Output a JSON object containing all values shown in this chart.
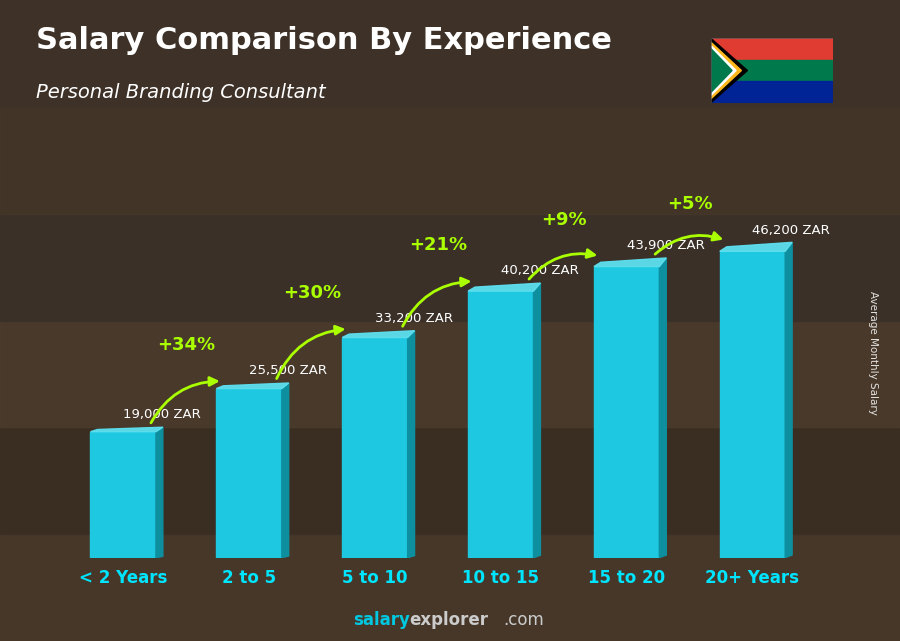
{
  "title": "Salary Comparison By Experience",
  "subtitle": "Personal Branding Consultant",
  "categories": [
    "< 2 Years",
    "2 to 5",
    "5 to 10",
    "10 to 15",
    "15 to 20",
    "20+ Years"
  ],
  "values": [
    19000,
    25500,
    33200,
    40200,
    43900,
    46200
  ],
  "labels": [
    "19,000 ZAR",
    "25,500 ZAR",
    "33,200 ZAR",
    "40,200 ZAR",
    "43,900 ZAR",
    "46,200 ZAR"
  ],
  "pct_changes": [
    "+34%",
    "+30%",
    "+21%",
    "+9%",
    "+5%"
  ],
  "bar_color_face": "#1ec8e0",
  "bar_color_right": "#0e8fa0",
  "bar_color_top": "#5de0f0",
  "bg_color": "#5a4a3a",
  "title_color": "#ffffff",
  "subtitle_color": "#ffffff",
  "label_color": "#ffffff",
  "pct_color": "#aaff00",
  "xticklabel_color": "#00e5ff",
  "footer_color_salary": "#00c8e0",
  "footer_color_rest": "#cccccc",
  "right_label": "Average Monthly Salary",
  "ylim": [
    0,
    58000
  ],
  "bar_width": 0.52
}
